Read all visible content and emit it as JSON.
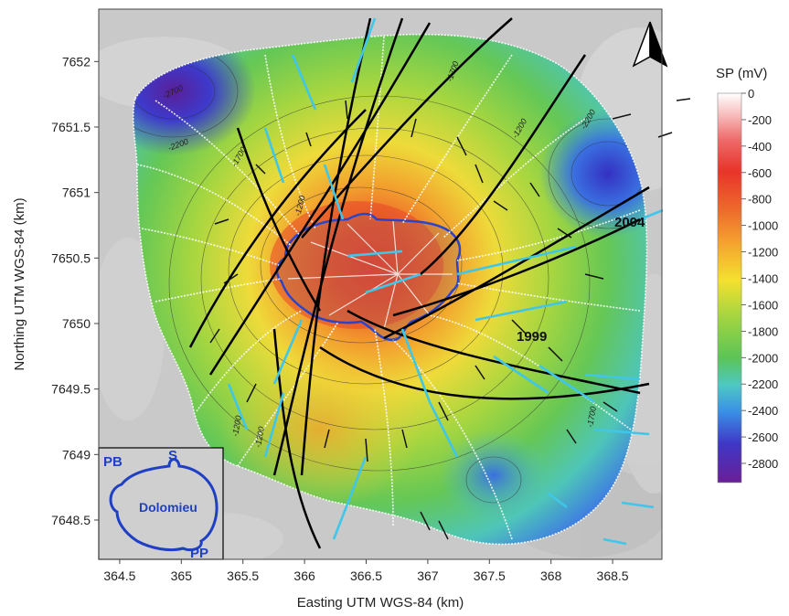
{
  "axes": {
    "xlabel": "Easting UTM WGS-84 (km)",
    "ylabel": "Northing UTM WGS-84 (km)",
    "xticks": [
      "364.5",
      "365",
      "365.5",
      "366",
      "366.5",
      "367",
      "367.5",
      "368",
      "368.5"
    ],
    "yticks": [
      "7652",
      "7651.5",
      "7651",
      "7650.5",
      "7650",
      "7649.5",
      "7649",
      "7648.5"
    ],
    "xlim": [
      364.33,
      368.9
    ],
    "ylim": [
      7648.2,
      7652.4
    ]
  },
  "colorbar": {
    "title": "SP (mV)",
    "labels": [
      "0",
      "-200",
      "-400",
      "-600",
      "-800",
      "-1000",
      "-1200",
      "-1400",
      "-1600",
      "-1800",
      "-2000",
      "-2200",
      "-2400",
      "-2600",
      "-2800"
    ],
    "colors": [
      "#ffffff",
      "#f7c3c3",
      "#ef6a6a",
      "#e8342a",
      "#e8542b",
      "#f08a2e",
      "#f6b22f",
      "#f4de2e",
      "#d3e23c",
      "#94d244",
      "#5fc558",
      "#52c6c0",
      "#3a8ee6",
      "#3f37c7",
      "#6a1f96"
    ]
  },
  "contour_labels": [
    "-2700",
    "-2200",
    "-1700",
    "-1200",
    "-1700",
    "-1200",
    "-1200",
    "-1200",
    "-2200",
    "-1700"
  ],
  "annotations": {
    "year_a": "2004",
    "year_b": "1999"
  },
  "inset": {
    "pb": "PB",
    "s": "S",
    "dolomieu": "Dolomieu",
    "pp": "PP"
  },
  "north_arrow": "north-arrow"
}
